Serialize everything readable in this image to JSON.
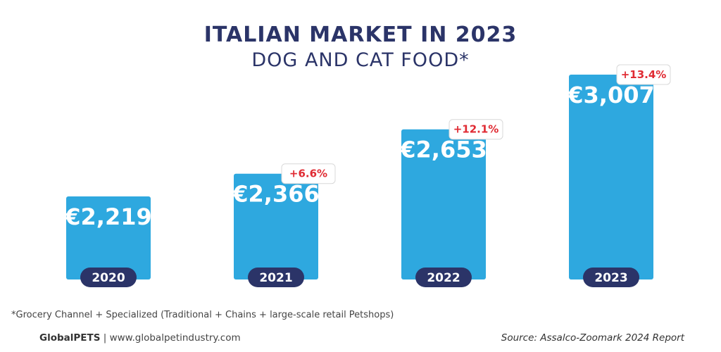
{
  "header": {
    "title": "ITALIAN MARKET IN 2023",
    "subtitle": "DOG AND CAT FOOD*"
  },
  "colors": {
    "bar": "#2ea8df",
    "year_pill": "#2b3468",
    "growth_text": "#e02b33",
    "title": "#2b3468"
  },
  "chart_data": {
    "type": "bar",
    "categories": [
      "2020",
      "2021",
      "2022",
      "2023"
    ],
    "values": [
      2219,
      2366,
      2653,
      3007
    ],
    "value_labels": [
      "€2,219",
      "€2,366",
      "€2,653",
      "€3,007"
    ],
    "growth_labels": [
      "",
      "+6.6%",
      "+12.1%",
      "+13.4%"
    ],
    "title": "ITALIAN MARKET IN 2023",
    "subtitle": "DOG AND CAT FOOD*",
    "xlabel": "",
    "ylabel": "",
    "grid": false
  },
  "footnote": "*Grocery Channel + Specialized (Traditional + Chains + large-scale retail Petshops)",
  "footer": {
    "brand": "GlobalPETS",
    "separator": "|",
    "website": "www.globalpetindustry.com",
    "source": "Source: Assalco-Zoomark 2024 Report"
  }
}
